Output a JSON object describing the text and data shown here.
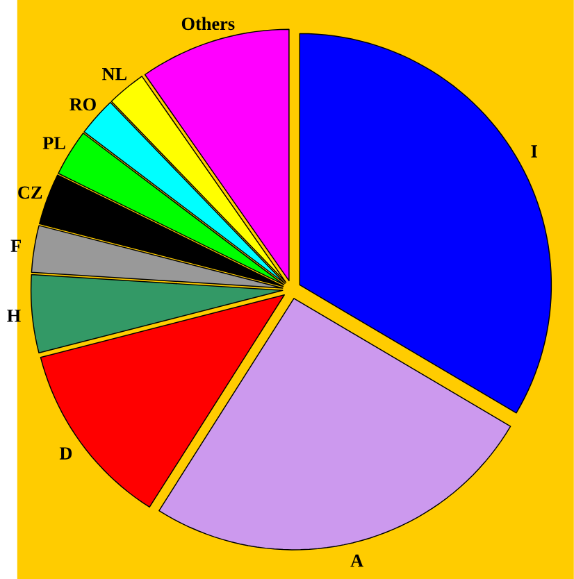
{
  "chart_data": {
    "type": "pie",
    "categories": [
      "I",
      "A",
      "D",
      "H",
      "F",
      "CZ",
      "PL",
      "RO",
      "NL",
      "Others"
    ],
    "values": [
      33.5,
      25.5,
      12,
      5,
      3,
      3.3,
      3,
      2.5,
      2.5,
      9.7
    ],
    "colors": [
      "#0000ff",
      "#cc99ee",
      "#ff0000",
      "#339966",
      "#999999",
      "#000000",
      "#00ff00",
      "#00ffff",
      "#ffff00",
      "#ff00ff"
    ]
  }
}
